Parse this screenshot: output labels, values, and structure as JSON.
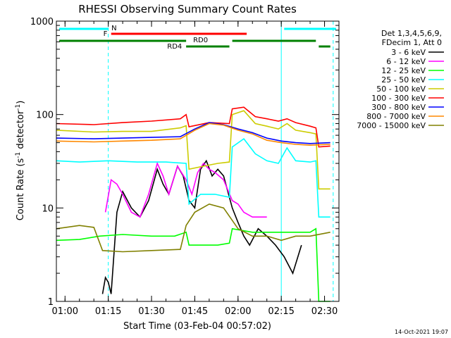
{
  "chart_data": {
    "type": "line",
    "title": "RHESSI Observing Summary Count Rates",
    "xlabel": "Start Time (03-Feb-04 00:57:02)",
    "ylabel": "Count Rate (s",
    "ylabel_sup1": "-1",
    "ylabel_mid": " detector",
    "ylabel_sup2": "-1",
    "ylabel_end": ")",
    "y_scale": "log",
    "ylim": [
      1,
      1000
    ],
    "xlim": [
      "00:57",
      "02:35"
    ],
    "x_ticks": [
      "01:00",
      "01:15",
      "01:30",
      "01:45",
      "02:00",
      "02:15",
      "02:30"
    ],
    "y_ticks": [
      "1",
      "10",
      "100",
      "1000"
    ],
    "legend_header": [
      "Det 1,3,4,5,6,9,",
      "FDecim 1, Att 0"
    ],
    "series": [
      {
        "name": "3 - 6 keV",
        "color": "#000000",
        "points": [
          [
            "01:13",
            1.2
          ],
          [
            "01:14",
            1.8
          ],
          [
            "01:15",
            1.6
          ],
          [
            "01:16",
            1.2
          ],
          [
            "01:18",
            9
          ],
          [
            "01:20",
            15
          ],
          [
            "01:23",
            10
          ],
          [
            "01:26",
            8
          ],
          [
            "01:29",
            12
          ],
          [
            "01:32",
            26
          ],
          [
            "01:34",
            18
          ],
          [
            "01:36",
            14
          ],
          [
            "01:39",
            28
          ],
          [
            "01:41",
            22
          ],
          [
            "01:43",
            12
          ],
          [
            "01:45",
            10
          ],
          [
            "01:47",
            26
          ],
          [
            "01:49",
            32
          ],
          [
            "01:51",
            22
          ],
          [
            "01:53",
            26
          ],
          [
            "01:55",
            22
          ],
          [
            "01:58",
            10
          ],
          [
            "02:00",
            7
          ],
          [
            "02:02",
            5
          ],
          [
            "02:04",
            4
          ],
          [
            "02:07",
            6
          ],
          [
            "02:10",
            5
          ],
          [
            "02:13",
            4
          ],
          [
            "02:16",
            3
          ],
          [
            "02:19",
            2
          ],
          [
            "02:22",
            4
          ]
        ]
      },
      {
        "name": "6 - 12 keV",
        "color": "#ff00ff",
        "points": [
          [
            "01:14",
            9
          ],
          [
            "01:16",
            20
          ],
          [
            "01:18",
            18
          ],
          [
            "01:20",
            14
          ],
          [
            "01:23",
            9
          ],
          [
            "01:26",
            8
          ],
          [
            "01:29",
            14
          ],
          [
            "01:32",
            30
          ],
          [
            "01:34",
            22
          ],
          [
            "01:36",
            14
          ],
          [
            "01:39",
            28
          ],
          [
            "01:42",
            20
          ],
          [
            "01:44",
            14
          ],
          [
            "01:46",
            24
          ],
          [
            "01:48",
            30
          ],
          [
            "01:50",
            26
          ],
          [
            "01:52",
            24
          ],
          [
            "01:55",
            20
          ],
          [
            "01:58",
            12
          ],
          [
            "02:00",
            11
          ],
          [
            "02:02",
            9
          ],
          [
            "02:05",
            8
          ],
          [
            "02:08",
            8
          ],
          [
            "02:10",
            8
          ]
        ]
      },
      {
        "name": "12 - 25 keV",
        "color": "#00ff00",
        "points": [
          [
            "00:57",
            4.5
          ],
          [
            "01:05",
            4.6
          ],
          [
            "01:12",
            5
          ],
          [
            "01:20",
            5.2
          ],
          [
            "01:30",
            5
          ],
          [
            "01:38",
            5
          ],
          [
            "01:42",
            5.5
          ],
          [
            "01:43",
            4
          ],
          [
            "01:48",
            4
          ],
          [
            "01:53",
            4
          ],
          [
            "01:57",
            4.2
          ],
          [
            "01:58",
            6
          ],
          [
            "02:05",
            5.5
          ],
          [
            "02:15",
            5.5
          ],
          [
            "02:25",
            5.5
          ],
          [
            "02:27",
            6
          ],
          [
            "02:28",
            1
          ],
          [
            "02:32",
            1
          ]
        ]
      },
      {
        "name": "25 - 50 keV",
        "color": "#00ffff",
        "points": [
          [
            "00:57",
            32
          ],
          [
            "01:05",
            31
          ],
          [
            "01:15",
            32
          ],
          [
            "01:25",
            31
          ],
          [
            "01:35",
            31
          ],
          [
            "01:42",
            30
          ],
          [
            "01:43",
            11
          ],
          [
            "01:47",
            14
          ],
          [
            "01:52",
            14
          ],
          [
            "01:57",
            13
          ],
          [
            "01:58",
            45
          ],
          [
            "02:02",
            55
          ],
          [
            "02:06",
            38
          ],
          [
            "02:10",
            32
          ],
          [
            "02:14",
            30
          ],
          [
            "02:17",
            44
          ],
          [
            "02:20",
            32
          ],
          [
            "02:25",
            31
          ],
          [
            "02:27",
            32
          ],
          [
            "02:28",
            8
          ],
          [
            "02:32",
            8
          ]
        ]
      },
      {
        "name": "50 - 100 keV",
        "color": "#cccc00",
        "points": [
          [
            "00:57",
            68
          ],
          [
            "01:10",
            65
          ],
          [
            "01:20",
            66
          ],
          [
            "01:30",
            66
          ],
          [
            "01:40",
            72
          ],
          [
            "01:42",
            76
          ],
          [
            "01:43",
            26
          ],
          [
            "01:48",
            28
          ],
          [
            "01:53",
            30
          ],
          [
            "01:57",
            31
          ],
          [
            "01:58",
            100
          ],
          [
            "02:02",
            110
          ],
          [
            "02:06",
            80
          ],
          [
            "02:10",
            75
          ],
          [
            "02:14",
            70
          ],
          [
            "02:17",
            80
          ],
          [
            "02:20",
            68
          ],
          [
            "02:25",
            64
          ],
          [
            "02:27",
            62
          ],
          [
            "02:28",
            16
          ],
          [
            "02:32",
            16
          ]
        ]
      },
      {
        "name": "100 - 300 keV",
        "color": "#ff0000",
        "points": [
          [
            "00:57",
            80
          ],
          [
            "01:10",
            78
          ],
          [
            "01:20",
            82
          ],
          [
            "01:30",
            85
          ],
          [
            "01:40",
            90
          ],
          [
            "01:42",
            100
          ],
          [
            "01:43",
            74
          ],
          [
            "01:50",
            82
          ],
          [
            "01:57",
            80
          ],
          [
            "01:58",
            115
          ],
          [
            "02:02",
            120
          ],
          [
            "02:06",
            95
          ],
          [
            "02:10",
            90
          ],
          [
            "02:14",
            85
          ],
          [
            "02:17",
            90
          ],
          [
            "02:20",
            82
          ],
          [
            "02:25",
            75
          ],
          [
            "02:27",
            72
          ],
          [
            "02:28",
            45
          ],
          [
            "02:32",
            46
          ]
        ]
      },
      {
        "name": "300 - 800 keV",
        "color": "#0000ff",
        "points": [
          [
            "00:57",
            56
          ],
          [
            "01:10",
            55
          ],
          [
            "01:20",
            56
          ],
          [
            "01:30",
            57
          ],
          [
            "01:40",
            58
          ],
          [
            "01:45",
            70
          ],
          [
            "01:50",
            82
          ],
          [
            "01:55",
            78
          ],
          [
            "02:00",
            70
          ],
          [
            "02:05",
            64
          ],
          [
            "02:10",
            56
          ],
          [
            "02:15",
            52
          ],
          [
            "02:20",
            50
          ],
          [
            "02:25",
            49
          ],
          [
            "02:32",
            50
          ]
        ]
      },
      {
        "name": "800 - 7000 keV",
        "color": "#ff8800",
        "points": [
          [
            "00:57",
            52
          ],
          [
            "01:10",
            51
          ],
          [
            "01:20",
            52
          ],
          [
            "01:30",
            53
          ],
          [
            "01:40",
            55
          ],
          [
            "01:45",
            68
          ],
          [
            "01:50",
            80
          ],
          [
            "01:55",
            77
          ],
          [
            "02:00",
            68
          ],
          [
            "02:05",
            62
          ],
          [
            "02:10",
            53
          ],
          [
            "02:15",
            50
          ],
          [
            "02:20",
            48
          ],
          [
            "02:25",
            47
          ],
          [
            "02:32",
            48
          ]
        ]
      },
      {
        "name": "7000 - 15000 keV",
        "color": "#808000",
        "points": [
          [
            "00:57",
            6
          ],
          [
            "01:05",
            6.5
          ],
          [
            "01:10",
            6.2
          ],
          [
            "01:13",
            3.5
          ],
          [
            "01:20",
            3.4
          ],
          [
            "01:30",
            3.5
          ],
          [
            "01:40",
            3.6
          ],
          [
            "01:42",
            6.5
          ],
          [
            "01:45",
            9
          ],
          [
            "01:50",
            11
          ],
          [
            "01:55",
            10
          ],
          [
            "02:00",
            6
          ],
          [
            "02:05",
            5
          ],
          [
            "02:10",
            5
          ],
          [
            "02:15",
            4.5
          ],
          [
            "02:20",
            5
          ],
          [
            "02:25",
            5
          ],
          [
            "02:32",
            5.5
          ]
        ]
      }
    ],
    "status_bars": [
      {
        "label": "N",
        "color": "#00ffff",
        "segments": [
          [
            "00:58",
            "01:15"
          ],
          [
            "02:16",
            "02:34"
          ]
        ]
      },
      {
        "label": "F",
        "color": "#ff0000",
        "segments": [
          [
            "01:16",
            "02:03"
          ]
        ]
      },
      {
        "label": "RD0",
        "color": "#008000",
        "segments": [
          [
            "00:58",
            "01:42"
          ],
          [
            "01:58",
            "02:27"
          ]
        ]
      },
      {
        "label": "RD4",
        "color": "#008000",
        "segments": [
          [
            "01:42",
            "01:57"
          ],
          [
            "02:28",
            "02:32"
          ]
        ]
      }
    ],
    "vlines": [
      {
        "time": "01:15",
        "color": "#00ffff",
        "style": "dashed"
      },
      {
        "time": "02:15",
        "color": "#00ffff",
        "style": "solid"
      },
      {
        "time": "02:33",
        "color": "#00ffff",
        "style": "dashed"
      }
    ],
    "timestamp": "14-Oct-2021 19:07"
  }
}
